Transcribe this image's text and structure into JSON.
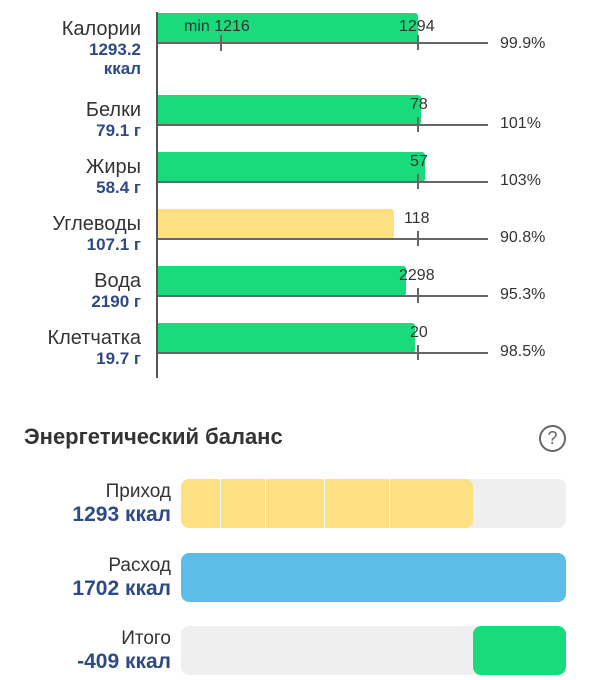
{
  "nutrients": [
    {
      "name": "Калории",
      "value": "1293.2",
      "unit": "ккал",
      "target_label": "1294",
      "min_label": "min 1216",
      "percent": "99.9%",
      "fill_ratio": 0.999,
      "color": "#1adb7c"
    },
    {
      "name": "Белки",
      "value": "79.1 г",
      "unit": "",
      "target_label": "78",
      "min_label": "",
      "percent": "101%",
      "fill_ratio": 1.01,
      "color": "#1adb7c"
    },
    {
      "name": "Жиры",
      "value": "58.4 г",
      "unit": "",
      "target_label": "57",
      "min_label": "",
      "percent": "103%",
      "fill_ratio": 1.03,
      "color": "#1adb7c"
    },
    {
      "name": "Углеводы",
      "value": "107.1 г",
      "unit": "",
      "target_label": "118",
      "min_label": "",
      "percent": "90.8%",
      "fill_ratio": 0.908,
      "color": "#fce081"
    },
    {
      "name": "Вода",
      "value": "2190 г",
      "unit": "",
      "target_label": "2298",
      "min_label": "",
      "percent": "95.3%",
      "fill_ratio": 0.953,
      "color": "#1adb7c"
    },
    {
      "name": "Клетчатка",
      "value": "19.7 г",
      "unit": "",
      "target_label": "20",
      "min_label": "",
      "percent": "98.5%",
      "fill_ratio": 0.985,
      "color": "#1adb7c"
    }
  ],
  "energy_balance": {
    "title": "Энергетический баланс",
    "help_icon": "?",
    "rows": [
      {
        "label": "Приход",
        "value": "1293 ккал",
        "fill_fraction": 0.76,
        "color": "#fce081"
      },
      {
        "label": "Расход",
        "value": "1702 ккал",
        "fill_fraction": 1.0,
        "color": "#5bbde8"
      },
      {
        "label": "Итого",
        "value": "-409 ккал",
        "fill_fraction": 0.24,
        "color": "#1adb7c"
      }
    ]
  }
}
